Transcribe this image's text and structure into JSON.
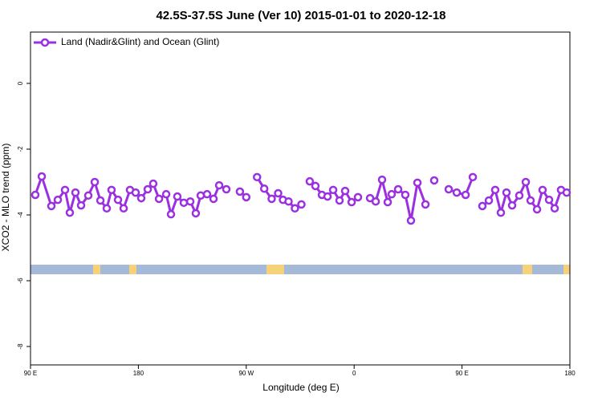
{
  "chart_data": {
    "type": "line",
    "title": "42.5S-37.5S June (Ver 10)   2015-01-01 to 2020-12-18",
    "x_label": "Longitude (deg E)",
    "y_label": "XCO2 - MLO trend (ppm)",
    "xlim": [
      90,
      540
    ],
    "xticks": [
      {
        "value": 90,
        "label": "90 E"
      },
      {
        "value": 180,
        "label": "180"
      },
      {
        "value": 270,
        "label": "90 W"
      },
      {
        "value": 360,
        "label": "0"
      },
      {
        "value": 450,
        "label": "90 E"
      },
      {
        "value": 540,
        "label": "180"
      }
    ],
    "ylim": [
      -8.56,
      1.56
    ],
    "yticks": [
      0,
      -2,
      -4,
      -6,
      -8
    ],
    "legend": "top-left",
    "x": [
      94,
      99.4,
      107.4,
      112.8,
      118.8,
      122.8,
      127.5,
      132.2,
      138.2,
      143.6,
      148.3,
      153.6,
      157.6,
      163,
      167.7,
      173,
      177.7,
      182.4,
      187.8,
      192.4,
      197.2,
      203.2,
      207.2,
      212.5,
      217.9,
      223.3,
      227.9,
      232,
      237.3,
      242.7,
      247.4,
      253.4,
      258,
      264.7,
      270,
      275,
      279,
      285,
      291.2,
      296.6,
      300.6,
      305.3,
      310.6,
      316,
      320,
      323,
      327.7,
      333.1,
      337.8,
      342.5,
      347.8,
      352.5,
      357.9,
      363.2,
      368,
      373.3,
      378,
      383.3,
      388,
      391.3,
      396.7,
      402.7,
      407.4,
      412.8,
      419.5,
      423,
      426.8,
      432,
      438.9,
      445.6,
      453,
      459,
      463,
      467,
      472.4,
      477.7,
      482.4,
      487.1,
      491.8,
      497.8,
      503.2,
      507.2,
      512.6,
      517.2,
      522.6,
      527.3,
      532.6,
      537.3
    ],
    "series": [
      {
        "name": "Land (Nadir&Glint) and Ocean (Glint)",
        "color": "#9b30e0",
        "values": [
          -3.39,
          -2.83,
          -3.73,
          -3.54,
          -3.24,
          -3.93,
          -3.32,
          -3.71,
          -3.41,
          -3.0,
          -3.56,
          -3.8,
          -3.24,
          -3.54,
          -3.8,
          -3.24,
          -3.32,
          -3.49,
          -3.22,
          -3.05,
          -3.51,
          -3.37,
          -3.98,
          -3.44,
          -3.63,
          -3.59,
          -3.95,
          -3.41,
          -3.37,
          -3.51,
          -3.1,
          -3.22,
          null,
          -3.29,
          -3.46,
          null,
          -2.85,
          -3.2,
          -3.51,
          -3.34,
          -3.54,
          -3.59,
          -3.8,
          -3.68,
          null,
          -2.98,
          -3.12,
          -3.39,
          -3.44,
          -3.24,
          -3.56,
          -3.27,
          -3.61,
          -3.46,
          null,
          -3.49,
          -3.59,
          -2.93,
          -3.61,
          -3.37,
          -3.22,
          -3.39,
          -4.17,
          -3.02,
          -3.68,
          null,
          -2.95,
          null,
          -3.22,
          -3.32,
          -3.39,
          -2.85,
          null,
          -3.73,
          -3.56,
          -3.24,
          -3.93,
          -3.32,
          -3.71,
          -3.41,
          -3.0,
          -3.56,
          -3.83,
          -3.24,
          -3.54,
          -3.8,
          -3.24,
          -3.32
        ]
      }
    ]
  }
}
